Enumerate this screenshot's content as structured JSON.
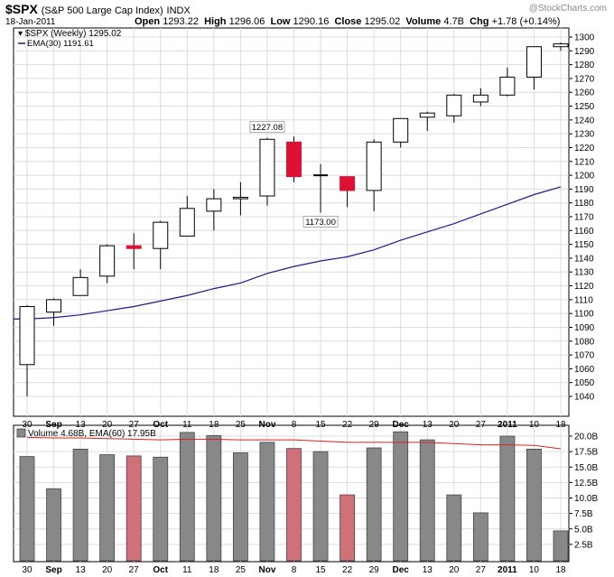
{
  "header": {
    "symbol": "$SPX",
    "name": "(S&P 500 Large Cap Index)",
    "exchange": "INDX",
    "credit": "@StockCharts.com",
    "date": "18-Jan-2011",
    "open_label": "Open",
    "open": "1293.22",
    "high_label": "High",
    "high": "1296.06",
    "low_label": "Low",
    "low": "1290.16",
    "close_label": "Close",
    "close": "1295.02",
    "volume_label": "Volume",
    "volume": "4.7B",
    "chg_label": "Chg",
    "chg": "+1.78 (+0.14%)"
  },
  "colors": {
    "up_candle": "#ffffff",
    "down_candle": "#dd1133",
    "volume_bar": "#888888",
    "volume_bar_down": "#d07078",
    "ema_price": "#1a1a8c",
    "ema_volume": "#dd2222",
    "grid": "#dcdcdc"
  },
  "chart_data": [
    {
      "type": "candlestick",
      "legend": [
        "$SPX (Weekly) 1295.02",
        "EMA(30) 1191.61"
      ],
      "x_tick_labels": [
        "30",
        "Sep",
        "13",
        "20",
        "27",
        "Oct",
        "11",
        "18",
        "25",
        "Nov",
        "8",
        "15",
        "22",
        "29",
        "Dec",
        "13",
        "20",
        "27",
        "2011",
        "10",
        "18"
      ],
      "bold_tick_labels": [
        "Sep",
        "Oct",
        "Nov",
        "Dec",
        "2011"
      ],
      "ylim": [
        1030,
        1305
      ],
      "y_ticks": [
        1040,
        1050,
        1060,
        1070,
        1080,
        1090,
        1100,
        1110,
        1120,
        1130,
        1140,
        1150,
        1160,
        1170,
        1180,
        1190,
        1200,
        1210,
        1220,
        1230,
        1240,
        1250,
        1260,
        1270,
        1280,
        1290,
        1300
      ],
      "grid": true,
      "annotations": [
        {
          "text": "1227.08",
          "index": 9,
          "value": 1227.08,
          "position": "above"
        },
        {
          "text": "1173.00",
          "index": 11,
          "value": 1173.0,
          "position": "below"
        }
      ],
      "candles": [
        {
          "open": 1063,
          "high": 1106,
          "low": 1040,
          "close": 1105
        },
        {
          "open": 1101,
          "high": 1111,
          "low": 1091,
          "close": 1110
        },
        {
          "open": 1113,
          "high": 1132,
          "low": 1113,
          "close": 1126
        },
        {
          "open": 1127,
          "high": 1150,
          "low": 1122,
          "close": 1149
        },
        {
          "open": 1149,
          "high": 1158,
          "low": 1132,
          "close": 1147
        },
        {
          "open": 1147,
          "high": 1167,
          "low": 1132,
          "close": 1166
        },
        {
          "open": 1156,
          "high": 1185,
          "low": 1156,
          "close": 1176
        },
        {
          "open": 1174,
          "high": 1190,
          "low": 1160,
          "close": 1183
        },
        {
          "open": 1183,
          "high": 1195,
          "low": 1171,
          "close": 1184
        },
        {
          "open": 1185,
          "high": 1227.08,
          "low": 1178,
          "close": 1226
        },
        {
          "open": 1224,
          "high": 1228,
          "low": 1195,
          "close": 1199
        },
        {
          "open": 1200,
          "high": 1208,
          "low": 1173.0,
          "close": 1200
        },
        {
          "open": 1199,
          "high": 1199,
          "low": 1177,
          "close": 1189
        },
        {
          "open": 1189,
          "high": 1226,
          "low": 1174,
          "close": 1224
        },
        {
          "open": 1224,
          "high": 1241,
          "low": 1220,
          "close": 1241
        },
        {
          "open": 1242,
          "high": 1246,
          "low": 1232,
          "close": 1245
        },
        {
          "open": 1243,
          "high": 1259,
          "low": 1238,
          "close": 1258
        },
        {
          "open": 1253,
          "high": 1263,
          "low": 1250,
          "close": 1258
        },
        {
          "open": 1258,
          "high": 1278,
          "low": 1257,
          "close": 1271
        },
        {
          "open": 1271,
          "high": 1293,
          "low": 1262,
          "close": 1293
        },
        {
          "open": 1293,
          "high": 1296.06,
          "low": 1290.16,
          "close": 1295.02
        }
      ],
      "ema30": [
        1096,
        1097,
        1099,
        1102,
        1105,
        1109,
        1113,
        1118,
        1122,
        1129,
        1134,
        1138,
        1141,
        1146,
        1153,
        1159,
        1165,
        1172,
        1179,
        1186,
        1191.61
      ]
    },
    {
      "type": "bar",
      "legend": [
        "Volume 4.68B, EMA(60) 17.95B"
      ],
      "ylim": [
        0,
        21.2
      ],
      "y_ticks": [
        2.5,
        5.0,
        7.5,
        10.0,
        12.5,
        15.0,
        17.5,
        20.0
      ],
      "y_tick_labels": [
        "2.5B",
        "5.0B",
        "7.5B",
        "10.0B",
        "12.5B",
        "15.0B",
        "17.5B",
        "20.0B"
      ],
      "values": [
        16.7,
        11.5,
        17.9,
        17.0,
        16.8,
        16.6,
        20.6,
        20.1,
        17.3,
        19.0,
        18.0,
        17.5,
        10.5,
        18.1,
        20.7,
        19.4,
        10.5,
        7.6,
        20.0,
        17.9,
        4.68
      ],
      "down": [
        false,
        false,
        false,
        false,
        true,
        false,
        false,
        false,
        false,
        false,
        true,
        false,
        true,
        false,
        false,
        false,
        false,
        false,
        false,
        false,
        false
      ],
      "ema60": [
        19.8,
        19.7,
        19.7,
        19.6,
        19.5,
        19.4,
        19.5,
        19.5,
        19.4,
        19.4,
        19.4,
        19.2,
        19.0,
        19.0,
        19.0,
        19.0,
        18.8,
        18.6,
        18.6,
        18.5,
        17.95
      ]
    }
  ]
}
